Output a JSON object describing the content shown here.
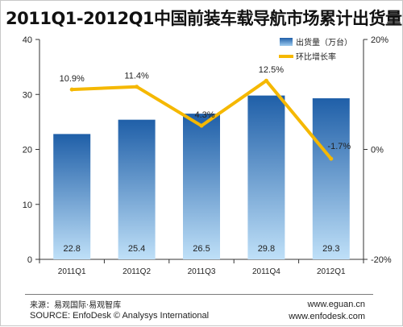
{
  "title": "2011Q1-2012Q1中国前装车载导航市场累计出货量",
  "chart_data": {
    "type": "bar",
    "categories": [
      "2011Q1",
      "2011Q2",
      "2011Q3",
      "2011Q4",
      "2012Q1"
    ],
    "series": [
      {
        "name": "出货量（万台）",
        "type": "bar",
        "axis": "left",
        "values": [
          22.8,
          25.4,
          26.5,
          29.8,
          29.3
        ],
        "labels": [
          "22.8",
          "25.4",
          "26.5",
          "29.8",
          "29.3"
        ]
      },
      {
        "name": "环比增长率",
        "type": "line",
        "axis": "right",
        "values": [
          10.9,
          11.4,
          4.3,
          12.5,
          -1.7
        ],
        "labels": [
          "10.9%",
          "11.4%",
          "4.3%",
          "12.5%",
          "-1.7%"
        ]
      }
    ],
    "ylim_left": [
      0,
      40
    ],
    "yticks_left": [
      "0",
      "10",
      "20",
      "30",
      "40"
    ],
    "ylim_right": [
      -20,
      20
    ],
    "yticks_right": [
      "-20%",
      "0%",
      "20%"
    ],
    "legend_position": "top-right",
    "grid": false,
    "colors": {
      "bar_top": "#1f5fa8",
      "bar_bottom": "#bfe0f8",
      "line": "#f5b800"
    }
  },
  "footer": {
    "source_cn": "来源：易观国际·易观智库",
    "source_en": "SOURCE: EnfoDesk © Analysys International",
    "website1": "www.eguan.cn",
    "website2": "www.enfodesk.com"
  }
}
